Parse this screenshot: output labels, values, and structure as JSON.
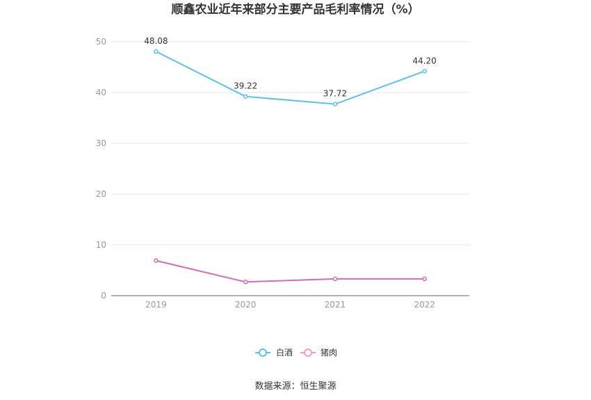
{
  "chart_data": {
    "type": "line",
    "title": "顺鑫农业近年来部分主要产品毛利率情况（%）",
    "categories": [
      "2019",
      "2020",
      "2021",
      "2022"
    ],
    "ylim": [
      0,
      50
    ],
    "yticks": [
      0,
      10,
      20,
      30,
      40,
      50
    ],
    "grid": true,
    "legend_position": "bottom",
    "series": [
      {
        "name": "白酒",
        "values": [
          48.08,
          39.22,
          37.72,
          44.2
        ],
        "labels": [
          "48.08",
          "39.22",
          "37.72",
          "44.20"
        ],
        "color": "#5bc0eb"
      },
      {
        "name": "猪肉",
        "values": [
          6.9,
          2.7,
          3.3,
          3.3
        ],
        "color": "#d26ab4"
      }
    ],
    "source": "数据来源：恒生聚源"
  }
}
